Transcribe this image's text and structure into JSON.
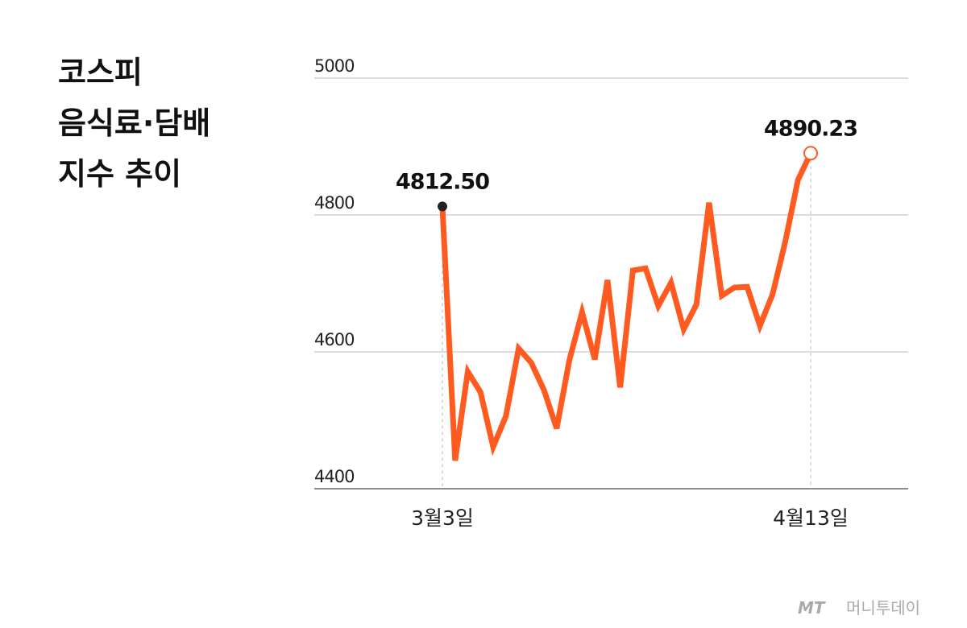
{
  "chart_data": {
    "type": "line",
    "title_lines": [
      "코스피",
      "음식료·담배",
      "지수 추이"
    ],
    "categories": [
      "3월3일",
      null,
      null,
      null,
      null,
      null,
      null,
      null,
      null,
      null,
      null,
      null,
      null,
      null,
      null,
      null,
      null,
      null,
      null,
      null,
      null,
      null,
      null,
      null,
      null,
      null,
      null,
      null,
      null,
      "4월13일"
    ],
    "values": [
      4812.5,
      4441,
      4571,
      4541,
      4461,
      4506,
      4605,
      4584,
      4544,
      4488,
      4588,
      4658,
      4589,
      4705,
      4548,
      4719,
      4722,
      4667,
      4701,
      4633,
      4669,
      4818,
      4682,
      4694,
      4695,
      4638,
      4684,
      4761,
      4851,
      4890.23
    ],
    "value_labels": [
      "4812.50",
      null,
      null,
      null,
      null,
      null,
      null,
      null,
      null,
      null,
      null,
      null,
      null,
      null,
      null,
      null,
      null,
      null,
      null,
      null,
      null,
      null,
      null,
      null,
      null,
      null,
      null,
      null,
      null,
      "4890.23"
    ],
    "color": "#ff5a1f",
    "ylim": [
      4400,
      5000
    ],
    "yticks": [
      4400,
      4600,
      4800,
      5000
    ],
    "grid": true,
    "logo": "MT",
    "source": "머니투데이"
  }
}
